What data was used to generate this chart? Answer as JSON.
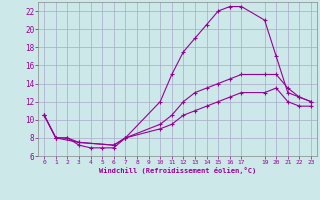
{
  "xlabel": "Windchill (Refroidissement éolien,°C)",
  "bg_color": "#cce8e8",
  "line_color": "#990099",
  "grid_color": "#aaaacc",
  "xlim": [
    -0.5,
    23.5
  ],
  "ylim": [
    6,
    23
  ],
  "xticks": [
    0,
    1,
    2,
    3,
    4,
    5,
    6,
    7,
    8,
    9,
    10,
    11,
    12,
    13,
    14,
    15,
    16,
    17,
    19,
    20,
    21,
    22,
    23
  ],
  "yticks": [
    6,
    8,
    10,
    12,
    14,
    16,
    18,
    20,
    22
  ],
  "line1_x": [
    0,
    1,
    2,
    3,
    4,
    5,
    6,
    7,
    10,
    11,
    12,
    13,
    14,
    15,
    16,
    17,
    19,
    20,
    21,
    22,
    23
  ],
  "line1_y": [
    10.5,
    8.0,
    8.0,
    7.2,
    6.9,
    6.9,
    6.9,
    8.0,
    12.0,
    15.0,
    17.5,
    19.0,
    20.5,
    22.0,
    22.5,
    22.5,
    21.0,
    17.0,
    13.0,
    12.5,
    12.0
  ],
  "line2_x": [
    0,
    1,
    2,
    3,
    6,
    7,
    10,
    11,
    12,
    13,
    14,
    15,
    16,
    17,
    19,
    20,
    21,
    22,
    23
  ],
  "line2_y": [
    10.5,
    8.0,
    8.0,
    7.5,
    7.2,
    8.0,
    9.5,
    10.5,
    12.0,
    13.0,
    13.5,
    14.0,
    14.5,
    15.0,
    15.0,
    15.0,
    13.5,
    12.5,
    12.0
  ],
  "line3_x": [
    0,
    1,
    3,
    6,
    7,
    10,
    11,
    12,
    13,
    14,
    15,
    16,
    17,
    19,
    20,
    21,
    22,
    23
  ],
  "line3_y": [
    10.5,
    8.0,
    7.5,
    7.2,
    8.0,
    9.0,
    9.5,
    10.5,
    11.0,
    11.5,
    12.0,
    12.5,
    13.0,
    13.0,
    13.5,
    12.0,
    11.5,
    11.5
  ]
}
